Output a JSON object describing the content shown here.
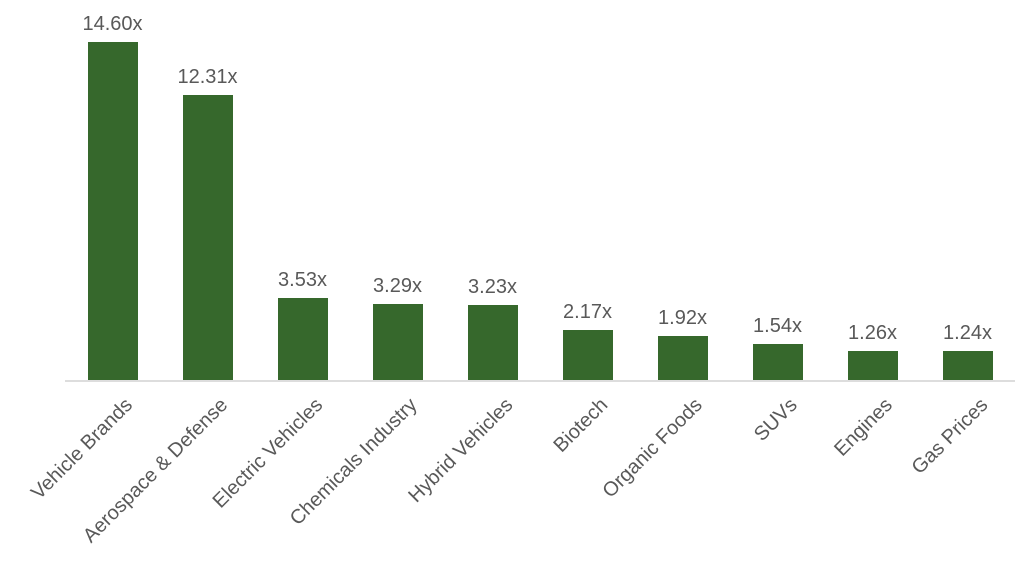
{
  "chart_data": {
    "type": "bar",
    "categories": [
      "Vehicle Brands",
      "Aerospace & Defense",
      "Electric Vehicles",
      "Chemicals Industry",
      "Hybrid Vehicles",
      "Biotech",
      "Organic Foods",
      "SUVs",
      "Engines",
      "Gas Prices"
    ],
    "values": [
      14.6,
      12.31,
      3.53,
      3.29,
      3.23,
      2.17,
      1.92,
      1.54,
      1.26,
      1.24
    ],
    "value_labels": [
      "14.60x",
      "12.31x",
      "3.53x",
      "3.29x",
      "3.23x",
      "2.17x",
      "1.92x",
      "1.54x",
      "1.26x",
      "1.24x"
    ],
    "value_suffix": "x",
    "title": "",
    "xlabel": "",
    "ylabel": "",
    "ylim": [
      0,
      14.6
    ],
    "grid": false,
    "legend": false,
    "colors": {
      "bar": "#36682C",
      "label_text": "#595959",
      "axis_line": "#DDDDDD",
      "background": "#FFFFFF"
    }
  }
}
